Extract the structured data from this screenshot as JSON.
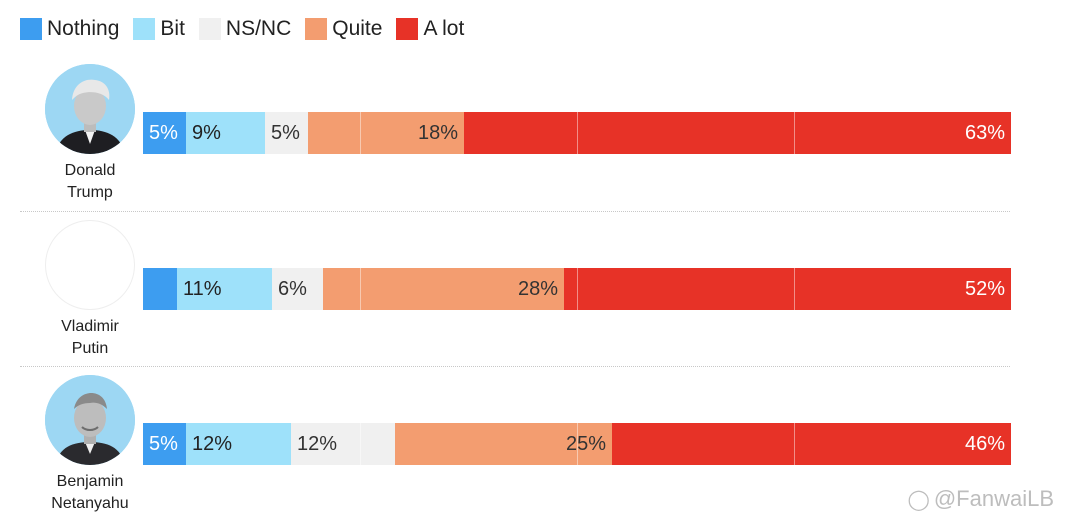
{
  "legend": [
    {
      "label": "Nothing",
      "color": "#3d9df0"
    },
    {
      "label": "Bit",
      "color": "#9ee1fa"
    },
    {
      "label": "NS/NC",
      "color": "#f0f0f0"
    },
    {
      "label": "Quite",
      "color": "#f39d70"
    },
    {
      "label": "A lot",
      "color": "#e73227"
    }
  ],
  "chart_data": {
    "type": "bar",
    "orientation": "horizontal-stacked-100",
    "categories": [
      "Donald Trump",
      "Vladimir Putin",
      "Benjamin Netanyahu"
    ],
    "series": [
      {
        "name": "Nothing",
        "values": [
          5,
          4,
          5
        ],
        "labels": [
          "5%",
          "",
          "5%"
        ]
      },
      {
        "name": "Bit",
        "values": [
          9,
          11,
          12
        ],
        "labels": [
          "9%",
          "11%",
          "12%"
        ]
      },
      {
        "name": "NS/NC",
        "values": [
          5,
          6,
          12
        ],
        "labels": [
          "5%",
          "6%",
          "12%"
        ]
      },
      {
        "name": "Quite",
        "values": [
          18,
          28,
          25
        ],
        "labels": [
          "18%",
          "28%",
          "25%"
        ]
      },
      {
        "name": "A lot",
        "values": [
          63,
          52,
          46
        ],
        "labels": [
          "63%",
          "52%",
          "46%"
        ]
      }
    ],
    "xlim": [
      0,
      100
    ],
    "gridlines": [
      25,
      50,
      75
    ],
    "title": "",
    "xlabel": "",
    "ylabel": ""
  },
  "people": [
    {
      "name_line1": "Donald",
      "name_line2": "Trump",
      "photo": "portrait-trump"
    },
    {
      "name_line1": "Vladimir",
      "name_line2": "Putin",
      "photo": "blank"
    },
    {
      "name_line1": "Benjamin",
      "name_line2": "Netanyahu",
      "photo": "portrait-netanyahu"
    }
  ],
  "watermark": {
    "text": "@FanwaiLB",
    "icon": "weibo-icon"
  }
}
